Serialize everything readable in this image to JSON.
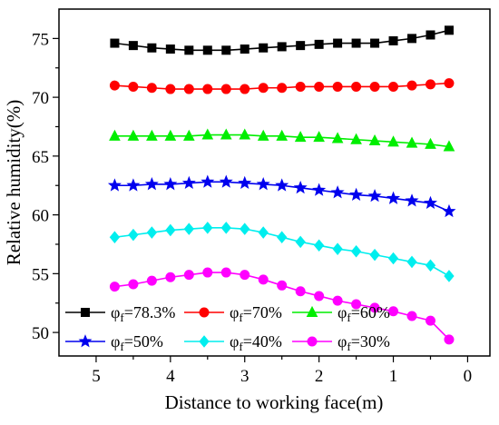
{
  "chart_data": {
    "type": "line",
    "title": "",
    "xlabel": "Distance to working face(m)",
    "ylabel": "Relative humidity(%)",
    "xlim": [
      5.5,
      -0.3
    ],
    "ylim": [
      48.0,
      77.5
    ],
    "x_ticks": [
      5,
      4,
      3,
      2,
      1,
      0
    ],
    "y_ticks": [
      50,
      55,
      60,
      65,
      70,
      75
    ],
    "grid": false,
    "legend_position": "bottom-left",
    "x": [
      4.75,
      4.5,
      4.25,
      4.0,
      3.75,
      3.5,
      3.25,
      3.0,
      2.75,
      2.5,
      2.25,
      2.0,
      1.75,
      1.5,
      1.25,
      1.0,
      0.75,
      0.5,
      0.25
    ],
    "series": [
      {
        "name": "φf=78.3%",
        "legend_main": "φ",
        "legend_sub": "f",
        "legend_rest": "=78.3%",
        "color": "#000000",
        "marker": "square",
        "values": [
          74.6,
          74.4,
          74.2,
          74.1,
          74.0,
          74.0,
          74.0,
          74.1,
          74.2,
          74.3,
          74.4,
          74.5,
          74.6,
          74.6,
          74.6,
          74.8,
          75.0,
          75.3,
          75.7
        ]
      },
      {
        "name": "φf=70%",
        "legend_main": "φ",
        "legend_sub": "f",
        "legend_rest": "=70%",
        "color": "#ff0000",
        "marker": "circle",
        "values": [
          71.0,
          70.9,
          70.8,
          70.7,
          70.7,
          70.7,
          70.7,
          70.7,
          70.8,
          70.8,
          70.9,
          70.9,
          70.9,
          70.9,
          70.9,
          70.9,
          71.0,
          71.1,
          71.2
        ]
      },
      {
        "name": "φf=60%",
        "legend_main": "φ",
        "legend_sub": "f",
        "legend_rest": "=60%",
        "color": "#00ee00",
        "marker": "triangle",
        "values": [
          66.7,
          66.7,
          66.7,
          66.7,
          66.7,
          66.8,
          66.8,
          66.8,
          66.7,
          66.7,
          66.6,
          66.6,
          66.5,
          66.4,
          66.3,
          66.2,
          66.1,
          66.0,
          65.8
        ]
      },
      {
        "name": "φf=50%",
        "legend_main": "φ",
        "legend_sub": "f",
        "legend_rest": "=50%",
        "color": "#0000ee",
        "marker": "star",
        "values": [
          62.5,
          62.5,
          62.6,
          62.6,
          62.7,
          62.8,
          62.8,
          62.7,
          62.6,
          62.5,
          62.3,
          62.1,
          61.9,
          61.7,
          61.6,
          61.4,
          61.2,
          61.0,
          60.3
        ]
      },
      {
        "name": "φf=40%",
        "legend_main": "φ",
        "legend_sub": "f",
        "legend_rest": "=40%",
        "color": "#00eeee",
        "marker": "diamond",
        "values": [
          58.1,
          58.3,
          58.5,
          58.7,
          58.8,
          58.9,
          58.9,
          58.8,
          58.5,
          58.1,
          57.7,
          57.4,
          57.1,
          56.9,
          56.6,
          56.3,
          56.0,
          55.7,
          54.8
        ]
      },
      {
        "name": "φf=30%",
        "legend_main": "φ",
        "legend_sub": "f",
        "legend_rest": "=30%",
        "color": "#ff00ff",
        "marker": "circle",
        "values": [
          53.9,
          54.1,
          54.4,
          54.7,
          54.9,
          55.1,
          55.1,
          54.9,
          54.5,
          54.0,
          53.5,
          53.1,
          52.7,
          52.4,
          52.1,
          51.8,
          51.4,
          51.0,
          49.4
        ]
      }
    ]
  }
}
